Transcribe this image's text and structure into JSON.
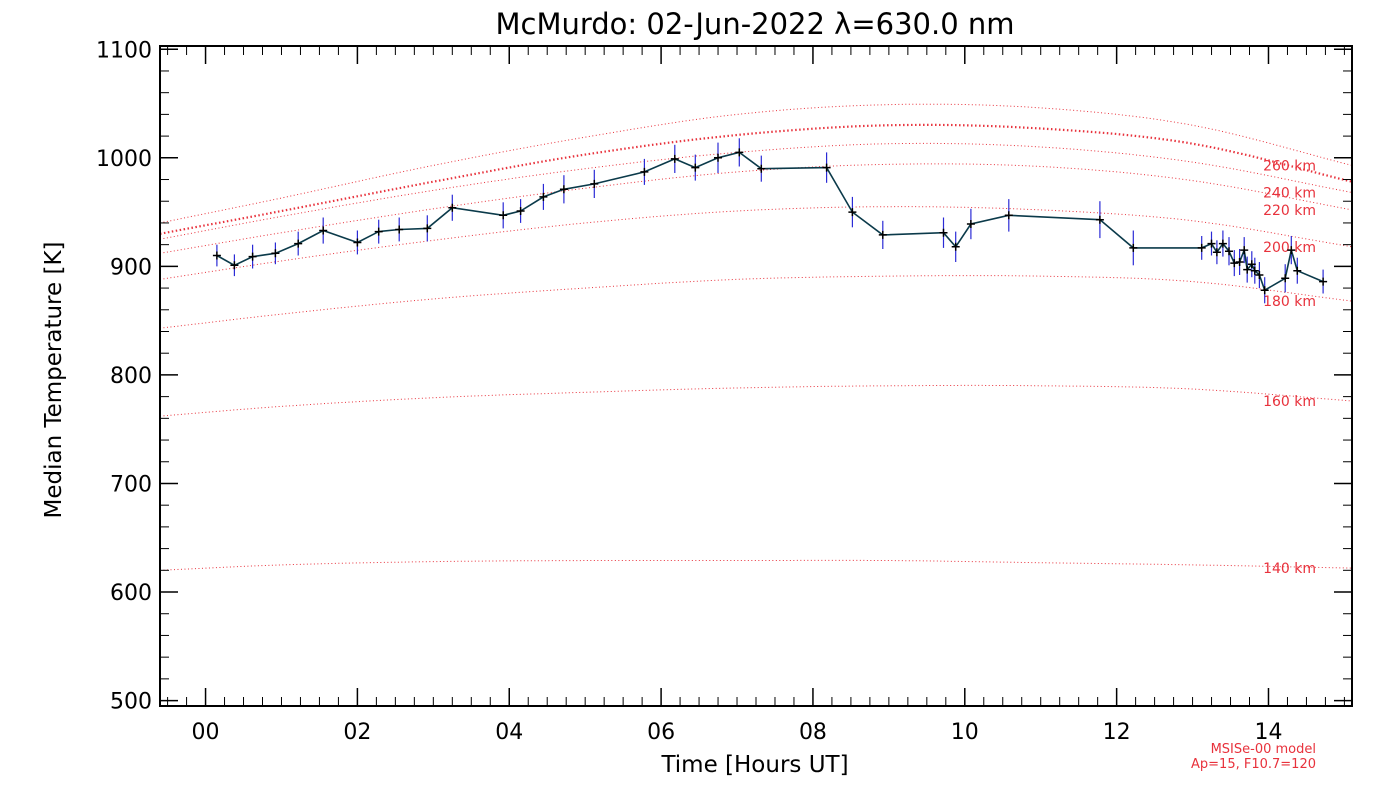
{
  "chart_data": {
    "type": "line",
    "title": "McMurdo: 02-Jun-2022 λ=630.0 nm",
    "xlabel": "Time [Hours UT]",
    "ylabel": "Median Temperature [K]",
    "xlim": [
      -0.6,
      15.1
    ],
    "ylim": [
      495,
      1103
    ],
    "x_ticks": [
      0,
      2,
      4,
      6,
      8,
      10,
      12,
      14
    ],
    "x_tick_labels": [
      "00",
      "02",
      "04",
      "06",
      "08",
      "10",
      "12",
      "14"
    ],
    "y_ticks": [
      500,
      600,
      700,
      800,
      900,
      1000,
      1100
    ],
    "y_tick_labels": [
      "500",
      "600",
      "700",
      "800",
      "900",
      "1000",
      "1100"
    ],
    "grid": false,
    "colors": {
      "measurement_line": "#0b3a4a",
      "error_bar": "#2b2bd6",
      "marker": "#000000",
      "model": "#e8323c"
    },
    "series": [
      {
        "style": "line-markers-errorbars",
        "x": [
          0.15,
          0.38,
          0.62,
          0.92,
          1.22,
          1.55,
          2.0,
          2.28,
          2.55,
          2.92,
          3.25,
          3.92,
          4.15,
          4.45,
          4.72,
          5.12,
          5.78,
          6.18,
          6.45,
          6.75,
          7.03,
          7.32,
          8.18,
          8.52,
          8.92,
          9.72,
          9.88,
          10.08,
          10.58,
          11.78,
          12.22,
          13.12,
          13.25,
          13.32,
          13.4,
          13.48,
          13.55,
          13.62,
          13.68,
          13.72,
          13.78,
          13.82,
          13.88,
          13.95,
          14.22,
          14.3,
          14.38,
          14.72
        ],
        "y": [
          910,
          901,
          909,
          912,
          921,
          933,
          922,
          932,
          934,
          935,
          954,
          947,
          951,
          964,
          971,
          976,
          987,
          999,
          991,
          1000,
          1005,
          990,
          991,
          950,
          929,
          931,
          918,
          939,
          947,
          943,
          917,
          917,
          921,
          913,
          921,
          914,
          903,
          904,
          915,
          897,
          902,
          896,
          892,
          878,
          889,
          915,
          896,
          886
        ],
        "err": [
          10,
          10,
          11,
          10,
          11,
          12,
          11,
          11,
          11,
          12,
          12,
          12,
          11,
          12,
          13,
          13,
          12,
          13,
          12,
          14,
          13,
          12,
          14,
          14,
          13,
          14,
          14,
          14,
          15,
          17,
          16,
          11,
          11,
          11,
          12,
          13,
          12,
          12,
          12,
          12,
          12,
          12,
          12,
          12,
          13,
          13,
          12,
          11
        ]
      }
    ],
    "model_curves": [
      {
        "name": "140 km",
        "style": "dotted",
        "x": [
          -0.6,
          1,
          3,
          5,
          7,
          9,
          11,
          13,
          15.1
        ],
        "y": [
          620,
          625,
          628,
          629,
          629,
          629,
          627,
          625,
          622
        ]
      },
      {
        "name": "160 km",
        "style": "dotted",
        "x": [
          -0.6,
          1,
          3,
          5,
          7,
          9,
          11,
          13,
          15.1
        ],
        "y": [
          762,
          771,
          779,
          784,
          788,
          790,
          790,
          787,
          776
        ]
      },
      {
        "name": "180 km",
        "style": "dotted",
        "x": [
          -0.6,
          1,
          3,
          5,
          7,
          9,
          11,
          13,
          15.1
        ],
        "y": [
          843,
          856,
          870,
          880,
          888,
          891,
          891,
          886,
          868
        ]
      },
      {
        "name": "200 km",
        "style": "dotted",
        "x": [
          -0.6,
          1,
          3,
          5,
          7,
          9,
          11,
          13,
          15.1
        ],
        "y": [
          888,
          905,
          924,
          940,
          951,
          955,
          952,
          942,
          918
        ]
      },
      {
        "name": "220 km",
        "style": "dotted",
        "x": [
          -0.6,
          1,
          3,
          5,
          7,
          9,
          11,
          13,
          15.1
        ],
        "y": [
          912,
          931,
          953,
          972,
          987,
          994,
          992,
          979,
          952
        ]
      },
      {
        "name": "240 km",
        "style": "dotted",
        "x": [
          -0.6,
          1,
          3,
          5,
          7,
          9,
          11,
          13,
          15.1
        ],
        "y": [
          925,
          946,
          970,
          990,
          1005,
          1013,
          1010,
          996,
          968
        ]
      },
      {
        "name": "",
        "style": "dotted-bold",
        "x": [
          -0.6,
          1,
          3,
          5,
          7,
          9,
          11,
          13,
          15.1
        ],
        "y": [
          930,
          951,
          978,
          1003,
          1021,
          1030,
          1027,
          1013,
          978
        ]
      },
      {
        "name": "260 km",
        "style": "dotted",
        "x": [
          -0.6,
          1,
          3,
          5,
          7,
          9,
          11,
          13,
          15.1
        ],
        "y": [
          940,
          963,
          993,
          1019,
          1040,
          1049,
          1046,
          1030,
          993
        ]
      }
    ],
    "annotations": [
      "MSISe-00 model",
      "Ap=15, F10.7=120"
    ]
  }
}
